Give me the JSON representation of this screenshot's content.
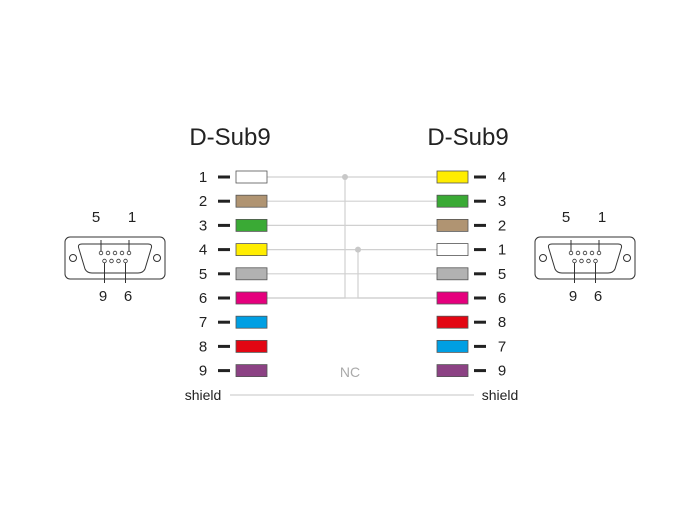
{
  "left": {
    "title": "D-Sub9",
    "connector_labels": {
      "top_left": "5",
      "top_right": "1",
      "bottom_left": "9",
      "bottom_right": "6"
    },
    "pins": [
      {
        "pin": "1",
        "color": "#ffffff"
      },
      {
        "pin": "2",
        "color": "#b09472"
      },
      {
        "pin": "3",
        "color": "#3aaa35"
      },
      {
        "pin": "4",
        "color": "#ffed00"
      },
      {
        "pin": "5",
        "color": "#b2b2b2"
      },
      {
        "pin": "6",
        "color": "#e5007d"
      },
      {
        "pin": "7",
        "color": "#009fe3"
      },
      {
        "pin": "8",
        "color": "#e30613"
      },
      {
        "pin": "9",
        "color": "#8c4284"
      }
    ],
    "shield": "shield"
  },
  "right": {
    "title": "D-Sub9",
    "connector_labels": {
      "top_left": "5",
      "top_right": "1",
      "bottom_left": "9",
      "bottom_right": "6"
    },
    "pins": [
      {
        "pin": "4",
        "color": "#ffed00"
      },
      {
        "pin": "3",
        "color": "#3aaa35"
      },
      {
        "pin": "2",
        "color": "#b09472"
      },
      {
        "pin": "1",
        "color": "#ffffff"
      },
      {
        "pin": "5",
        "color": "#b2b2b2"
      },
      {
        "pin": "6",
        "color": "#e5007d"
      },
      {
        "pin": "8",
        "color": "#e30613"
      },
      {
        "pin": "7",
        "color": "#009fe3"
      },
      {
        "pin": "9",
        "color": "#8c4284"
      }
    ],
    "shield": "shield"
  },
  "connections": {
    "wired_rows": 6,
    "bridges": [
      {
        "side": "left",
        "pins": [
          "1",
          "6"
        ]
      },
      {
        "side": "right",
        "pins": [
          "1",
          "6"
        ]
      }
    ],
    "nc_label": "NC"
  },
  "wire_color": "#d0d0d0"
}
